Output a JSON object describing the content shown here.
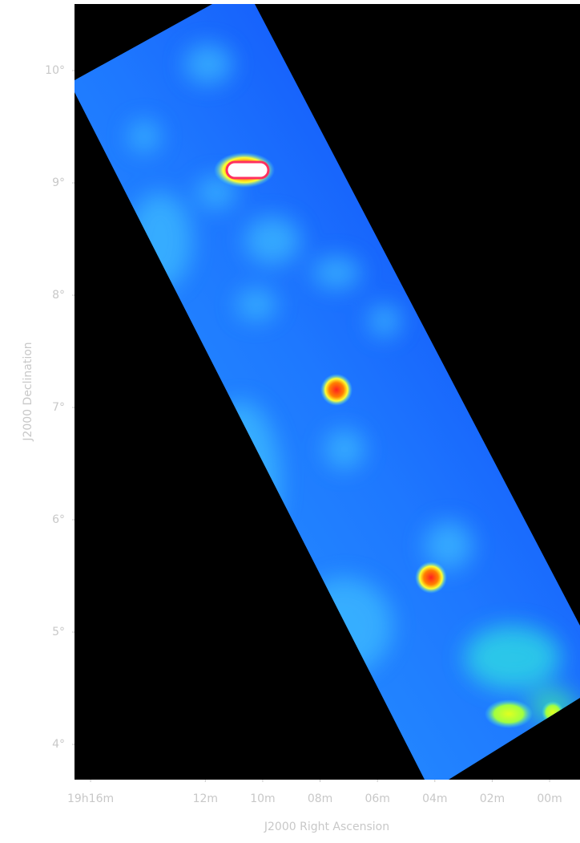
{
  "chart_data": {
    "type": "image",
    "xlabel": "J2000 Right Ascension",
    "ylabel": "J2000 Declination",
    "xlim": [
      16.56,
      -1.06
    ],
    "ylim": [
      3.686,
      10.593
    ],
    "xticks": [
      {
        "value": 16,
        "label": "19h16m"
      },
      {
        "value": 12,
        "label": "12m"
      },
      {
        "value": 10,
        "label": "10m"
      },
      {
        "value": 8,
        "label": "08m"
      },
      {
        "value": 6,
        "label": "06m"
      },
      {
        "value": 4,
        "label": "04m"
      },
      {
        "value": 2,
        "label": "02m"
      },
      {
        "value": 0,
        "label": "00m"
      }
    ],
    "yticks": [
      {
        "value": 4,
        "label": "4°"
      },
      {
        "value": 5,
        "label": "5°"
      },
      {
        "value": 6,
        "label": "6°"
      },
      {
        "value": 7,
        "label": "7°"
      },
      {
        "value": 8,
        "label": "8°"
      },
      {
        "value": 9,
        "label": "9°"
      },
      {
        "value": 10,
        "label": "10°"
      }
    ]
  }
}
